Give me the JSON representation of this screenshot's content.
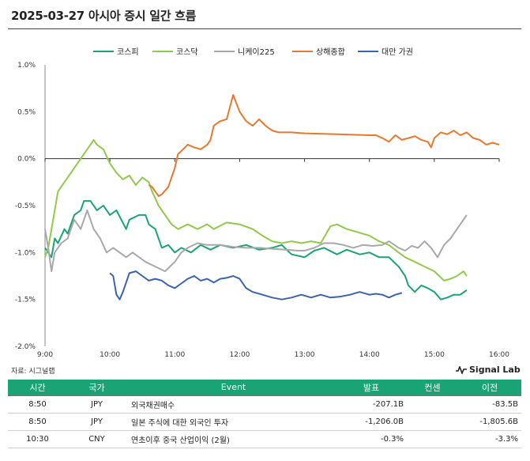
{
  "title": "2025-03-27 아시아 증시 일간 흐름",
  "source": "자료: 시그널랩",
  "brand": "Signal Lab",
  "colors": {
    "kospi": "#1aa476",
    "kosdaq": "#92c94b",
    "nikkei": "#a8a8a8",
    "shanghai": "#e8782e",
    "taiwan": "#3b63b0",
    "table_header": "#1aa476"
  },
  "chart_data": {
    "type": "line",
    "title": "",
    "xlabel": "",
    "ylabel": "",
    "x_unit": "hour",
    "xlim": [
      9.0,
      16.0
    ],
    "ylim": [
      -2.0,
      1.0
    ],
    "x_ticks": [
      {
        "x": 9,
        "label": "9:00"
      },
      {
        "x": 10,
        "label": "10:00"
      },
      {
        "x": 11,
        "label": "11:00"
      },
      {
        "x": 12,
        "label": "12:00"
      },
      {
        "x": 13,
        "label": "13:00"
      },
      {
        "x": 14,
        "label": "14:00"
      },
      {
        "x": 15,
        "label": "15:00"
      },
      {
        "x": 16,
        "label": "16:00"
      }
    ],
    "y_ticks": [
      {
        "y": 1.0,
        "label": "1.0%"
      },
      {
        "y": 0.5,
        "label": "0.5%"
      },
      {
        "y": 0.0,
        "label": "0.0%"
      },
      {
        "y": -0.5,
        "label": "-0.5%"
      },
      {
        "y": -1.0,
        "label": "-1.0%"
      },
      {
        "y": -1.5,
        "label": "-1.5%"
      },
      {
        "y": -2.0,
        "label": "-2.0%"
      }
    ],
    "legend_position": "top",
    "series": [
      {
        "name": "코스피",
        "color": "#1aa476",
        "points": [
          [
            9.0,
            -0.95
          ],
          [
            9.1,
            -1.05
          ],
          [
            9.15,
            -0.85
          ],
          [
            9.2,
            -0.9
          ],
          [
            9.3,
            -0.75
          ],
          [
            9.35,
            -0.8
          ],
          [
            9.45,
            -0.6
          ],
          [
            9.55,
            -0.55
          ],
          [
            9.6,
            -0.45
          ],
          [
            9.7,
            -0.45
          ],
          [
            9.8,
            -0.55
          ],
          [
            9.9,
            -0.5
          ],
          [
            10.0,
            -0.6
          ],
          [
            10.1,
            -0.55
          ],
          [
            10.25,
            -0.75
          ],
          [
            10.3,
            -0.65
          ],
          [
            10.45,
            -0.6
          ],
          [
            10.55,
            -0.6
          ],
          [
            10.6,
            -0.7
          ],
          [
            10.7,
            -0.75
          ],
          [
            10.8,
            -0.95
          ],
          [
            10.9,
            -0.92
          ],
          [
            11.0,
            -1.0
          ],
          [
            11.1,
            -0.95
          ],
          [
            11.25,
            -1.0
          ],
          [
            11.4,
            -0.92
          ],
          [
            11.55,
            -0.97
          ],
          [
            11.7,
            -0.92
          ],
          [
            11.9,
            -0.95
          ],
          [
            12.1,
            -0.92
          ],
          [
            12.3,
            -0.97
          ],
          [
            12.5,
            -0.95
          ],
          [
            12.65,
            -0.92
          ],
          [
            12.8,
            -1.02
          ],
          [
            13.0,
            -1.05
          ],
          [
            13.15,
            -0.98
          ],
          [
            13.3,
            -0.95
          ],
          [
            13.5,
            -1.02
          ],
          [
            13.65,
            -0.97
          ],
          [
            13.85,
            -1.02
          ],
          [
            14.0,
            -1.0
          ],
          [
            14.15,
            -1.05
          ],
          [
            14.3,
            -1.05
          ],
          [
            14.45,
            -1.15
          ],
          [
            14.55,
            -1.25
          ],
          [
            14.6,
            -1.35
          ],
          [
            14.7,
            -1.42
          ],
          [
            14.8,
            -1.35
          ],
          [
            14.9,
            -1.38
          ],
          [
            15.0,
            -1.42
          ],
          [
            15.1,
            -1.5
          ],
          [
            15.2,
            -1.48
          ],
          [
            15.3,
            -1.45
          ],
          [
            15.4,
            -1.45
          ],
          [
            15.5,
            -1.4
          ]
        ]
      },
      {
        "name": "코스닥",
        "color": "#92c94b",
        "points": [
          [
            9.0,
            -1.05
          ],
          [
            9.05,
            -0.95
          ],
          [
            9.1,
            -0.75
          ],
          [
            9.2,
            -0.35
          ],
          [
            9.3,
            -0.25
          ],
          [
            9.4,
            -0.15
          ],
          [
            9.5,
            -0.05
          ],
          [
            9.6,
            0.05
          ],
          [
            9.7,
            0.15
          ],
          [
            9.75,
            0.2
          ],
          [
            9.8,
            0.15
          ],
          [
            9.9,
            0.1
          ],
          [
            10.0,
            -0.05
          ],
          [
            10.1,
            -0.15
          ],
          [
            10.2,
            -0.22
          ],
          [
            10.3,
            -0.18
          ],
          [
            10.4,
            -0.28
          ],
          [
            10.5,
            -0.2
          ],
          [
            10.6,
            -0.25
          ],
          [
            10.65,
            -0.35
          ],
          [
            10.75,
            -0.5
          ],
          [
            10.85,
            -0.6
          ],
          [
            10.95,
            -0.7
          ],
          [
            11.05,
            -0.75
          ],
          [
            11.2,
            -0.7
          ],
          [
            11.35,
            -0.75
          ],
          [
            11.5,
            -0.7
          ],
          [
            11.6,
            -0.75
          ],
          [
            11.8,
            -0.68
          ],
          [
            12.0,
            -0.7
          ],
          [
            12.2,
            -0.75
          ],
          [
            12.35,
            -0.82
          ],
          [
            12.5,
            -0.88
          ],
          [
            12.65,
            -0.9
          ],
          [
            12.8,
            -0.88
          ],
          [
            12.95,
            -0.9
          ],
          [
            13.1,
            -0.88
          ],
          [
            13.25,
            -0.9
          ],
          [
            13.4,
            -0.72
          ],
          [
            13.5,
            -0.7
          ],
          [
            13.65,
            -0.75
          ],
          [
            13.8,
            -0.78
          ],
          [
            14.0,
            -0.82
          ],
          [
            14.15,
            -0.88
          ],
          [
            14.3,
            -0.92
          ],
          [
            14.45,
            -1.0
          ],
          [
            14.55,
            -1.05
          ],
          [
            14.7,
            -1.1
          ],
          [
            14.85,
            -1.15
          ],
          [
            15.0,
            -1.2
          ],
          [
            15.15,
            -1.3
          ],
          [
            15.25,
            -1.28
          ],
          [
            15.35,
            -1.25
          ],
          [
            15.45,
            -1.2
          ],
          [
            15.5,
            -1.25
          ]
        ]
      },
      {
        "name": "니케이225",
        "color": "#a8a8a8",
        "points": [
          [
            9.0,
            -0.75
          ],
          [
            9.05,
            -0.95
          ],
          [
            9.1,
            -1.2
          ],
          [
            9.15,
            -1.0
          ],
          [
            9.25,
            -0.9
          ],
          [
            9.35,
            -0.85
          ],
          [
            9.45,
            -0.65
          ],
          [
            9.55,
            -0.75
          ],
          [
            9.65,
            -0.55
          ],
          [
            9.75,
            -0.75
          ],
          [
            9.85,
            -0.85
          ],
          [
            9.95,
            -1.0
          ],
          [
            10.05,
            -0.95
          ],
          [
            10.15,
            -1.0
          ],
          [
            10.25,
            -1.05
          ],
          [
            10.35,
            -1.0
          ],
          [
            10.45,
            -1.05
          ],
          [
            10.55,
            -1.1
          ],
          [
            10.7,
            -1.15
          ],
          [
            10.85,
            -1.2
          ],
          [
            11.0,
            -1.1
          ],
          [
            11.1,
            -1.0
          ],
          [
            11.2,
            -0.95
          ],
          [
            11.35,
            -0.9
          ],
          [
            11.5,
            -0.92
          ],
          [
            11.7,
            -0.92
          ],
          [
            11.9,
            -0.94
          ],
          [
            12.1,
            -0.95
          ],
          [
            12.3,
            -0.95
          ],
          [
            12.5,
            -0.96
          ],
          [
            12.7,
            -0.97
          ],
          [
            12.9,
            -0.98
          ],
          [
            13.0,
            -0.98
          ],
          [
            13.15,
            -0.95
          ],
          [
            13.3,
            -0.9
          ],
          [
            13.45,
            -0.9
          ],
          [
            13.6,
            -0.92
          ],
          [
            13.75,
            -0.95
          ],
          [
            13.9,
            -0.92
          ],
          [
            14.05,
            -0.93
          ],
          [
            14.2,
            -0.92
          ],
          [
            14.3,
            -0.88
          ],
          [
            14.45,
            -0.95
          ],
          [
            14.55,
            -0.98
          ],
          [
            14.65,
            -0.93
          ],
          [
            14.75,
            -0.95
          ],
          [
            14.85,
            -0.88
          ],
          [
            14.95,
            -0.95
          ],
          [
            15.05,
            -1.05
          ],
          [
            15.15,
            -0.92
          ],
          [
            15.25,
            -0.85
          ],
          [
            15.35,
            -0.75
          ],
          [
            15.45,
            -0.65
          ],
          [
            15.5,
            -0.6
          ]
        ]
      },
      {
        "name": "상해종합",
        "color": "#e8782e",
        "points": [
          [
            10.6,
            -0.28
          ],
          [
            10.65,
            -0.3
          ],
          [
            10.7,
            -0.35
          ],
          [
            10.75,
            -0.4
          ],
          [
            10.8,
            -0.38
          ],
          [
            10.9,
            -0.3
          ],
          [
            10.95,
            -0.2
          ],
          [
            11.0,
            -0.1
          ],
          [
            11.05,
            0.05
          ],
          [
            11.1,
            0.08
          ],
          [
            11.2,
            0.15
          ],
          [
            11.3,
            0.12
          ],
          [
            11.4,
            0.1
          ],
          [
            11.5,
            0.15
          ],
          [
            11.55,
            0.2
          ],
          [
            11.6,
            0.35
          ],
          [
            11.7,
            0.4
          ],
          [
            11.8,
            0.42
          ],
          [
            11.85,
            0.55
          ],
          [
            11.9,
            0.68
          ],
          [
            12.0,
            0.5
          ],
          [
            12.1,
            0.4
          ],
          [
            12.2,
            0.35
          ],
          [
            12.3,
            0.42
          ],
          [
            12.4,
            0.35
          ],
          [
            12.5,
            0.3
          ],
          [
            12.6,
            0.28
          ],
          [
            12.8,
            0.28
          ],
          [
            13.0,
            0.27
          ],
          [
            13.5,
            0.26
          ],
          [
            14.0,
            0.25
          ],
          [
            14.1,
            0.25
          ],
          [
            14.2,
            0.22
          ],
          [
            14.3,
            0.18
          ],
          [
            14.4,
            0.25
          ],
          [
            14.5,
            0.2
          ],
          [
            14.6,
            0.22
          ],
          [
            14.7,
            0.24
          ],
          [
            14.8,
            0.2
          ],
          [
            14.9,
            0.18
          ],
          [
            14.95,
            0.12
          ],
          [
            15.0,
            0.22
          ],
          [
            15.1,
            0.28
          ],
          [
            15.2,
            0.26
          ],
          [
            15.3,
            0.3
          ],
          [
            15.4,
            0.25
          ],
          [
            15.5,
            0.28
          ],
          [
            15.6,
            0.22
          ],
          [
            15.7,
            0.2
          ],
          [
            15.8,
            0.15
          ],
          [
            15.9,
            0.17
          ],
          [
            16.0,
            0.15
          ]
        ]
      },
      {
        "name": "대만 가권",
        "color": "#3b63b0",
        "points": [
          [
            10.0,
            -1.22
          ],
          [
            10.05,
            -1.25
          ],
          [
            10.1,
            -1.45
          ],
          [
            10.15,
            -1.5
          ],
          [
            10.2,
            -1.42
          ],
          [
            10.3,
            -1.22
          ],
          [
            10.4,
            -1.2
          ],
          [
            10.5,
            -1.25
          ],
          [
            10.6,
            -1.3
          ],
          [
            10.7,
            -1.28
          ],
          [
            10.8,
            -1.3
          ],
          [
            10.9,
            -1.35
          ],
          [
            11.0,
            -1.38
          ],
          [
            11.1,
            -1.33
          ],
          [
            11.2,
            -1.28
          ],
          [
            11.3,
            -1.25
          ],
          [
            11.4,
            -1.3
          ],
          [
            11.5,
            -1.28
          ],
          [
            11.6,
            -1.32
          ],
          [
            11.7,
            -1.28
          ],
          [
            11.8,
            -1.27
          ],
          [
            11.9,
            -1.25
          ],
          [
            12.0,
            -1.28
          ],
          [
            12.1,
            -1.38
          ],
          [
            12.2,
            -1.42
          ],
          [
            12.35,
            -1.45
          ],
          [
            12.5,
            -1.48
          ],
          [
            12.65,
            -1.5
          ],
          [
            12.8,
            -1.48
          ],
          [
            12.95,
            -1.45
          ],
          [
            13.1,
            -1.48
          ],
          [
            13.25,
            -1.45
          ],
          [
            13.4,
            -1.48
          ],
          [
            13.55,
            -1.47
          ],
          [
            13.7,
            -1.45
          ],
          [
            13.85,
            -1.42
          ],
          [
            14.0,
            -1.45
          ],
          [
            14.1,
            -1.44
          ],
          [
            14.2,
            -1.45
          ],
          [
            14.3,
            -1.48
          ],
          [
            14.4,
            -1.45
          ],
          [
            14.5,
            -1.43
          ]
        ]
      }
    ]
  },
  "table": {
    "headers": {
      "time": "시간",
      "country": "국가",
      "event": "Event",
      "actual": "발표",
      "consensus": "컨센",
      "previous": "이전"
    },
    "rows": [
      {
        "time": "8:50",
        "country": "JPY",
        "event": "외국채권매수",
        "actual": "-207.1B",
        "consensus": "",
        "previous": "-83.5B"
      },
      {
        "time": "8:50",
        "country": "JPY",
        "event": "일본 주식에 대한 외국인 투자",
        "actual": "-1,206.0B",
        "consensus": "",
        "previous": "-1,805.6B"
      },
      {
        "time": "10:30",
        "country": "CNY",
        "event": "연초이후 중국 산업이익 (2월)",
        "actual": "-0.3%",
        "consensus": "",
        "previous": "-3.3%"
      }
    ]
  }
}
